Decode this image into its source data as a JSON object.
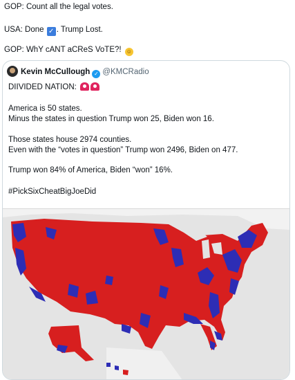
{
  "top_lines": [
    {
      "text": "GOP:  Count all the legal votes."
    },
    {
      "text_before": "USA:  Done ",
      "text_after": ". Trump Lost.",
      "icon": "check-box-icon"
    },
    {
      "text": "GOP:  WhY cANT aCReS VoTE?!",
      "icon": "zany-face-icon"
    }
  ],
  "quoted_tweet": {
    "author": "Kevin McCullough",
    "handle": "@KMCRadio",
    "headline": "DIIVIDED NATION:",
    "paragraphs": [
      "America is 50 states.",
      "Minus the states in question Trump won 25, Biden won 16.",
      "Those states house 2974 counties.",
      "Even with the “votes in question” Trump won 2496, Biden on 477.",
      "Trump won 84% of America, Biden “won” 16%.",
      "#PickSixCheatBigJoeDid"
    ]
  },
  "map": {
    "subject": "US county-level election map",
    "colors": {
      "republican": "#d71f1f",
      "democrat": "#2d2db5",
      "water": "#e4e4e4",
      "land_other": "#f3f3f3"
    }
  }
}
